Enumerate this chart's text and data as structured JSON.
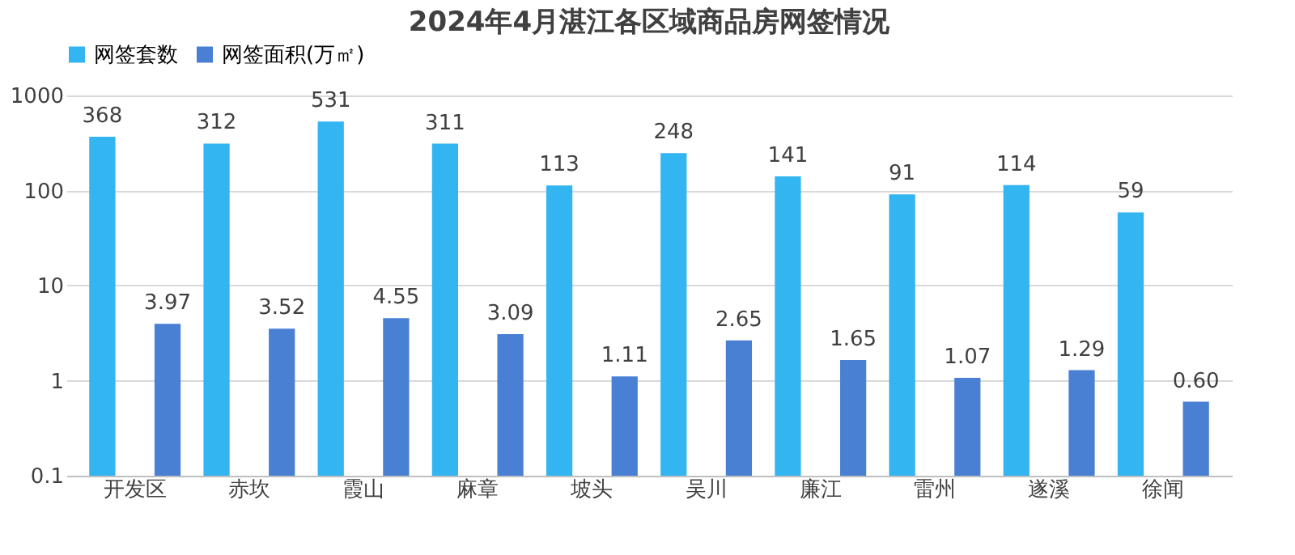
{
  "chart_data": {
    "type": "bar",
    "title": "2024年4月湛江各区域商品房网签情况",
    "categories": [
      "开发区",
      "赤坎",
      "霞山",
      "麻章",
      "坡头",
      "吴川",
      "廉江",
      "雷州",
      "遂溪",
      "徐闻"
    ],
    "series": [
      {
        "name": "网签套数",
        "color": "#33b5f2",
        "values": [
          368,
          312,
          531,
          311,
          113,
          248,
          141,
          91,
          114,
          59
        ],
        "value_labels": [
          "368",
          "312",
          "531",
          "311",
          "113",
          "248",
          "141",
          "91",
          "114",
          "59"
        ]
      },
      {
        "name": "网签面积(万㎡)",
        "color": "#4a80d4",
        "values": [
          3.97,
          3.52,
          4.55,
          3.09,
          1.11,
          2.65,
          1.65,
          1.07,
          1.29,
          0.6
        ],
        "value_labels": [
          "3.97",
          "3.52",
          "4.55",
          "3.09",
          "1.11",
          "2.65",
          "1.65",
          "1.07",
          "1.29",
          "0.60"
        ]
      }
    ],
    "log": true,
    "ylim": [
      0.1,
      1000
    ],
    "yticks": [
      0.1,
      1,
      10,
      100,
      1000
    ],
    "grid": "y",
    "legend": "top"
  }
}
